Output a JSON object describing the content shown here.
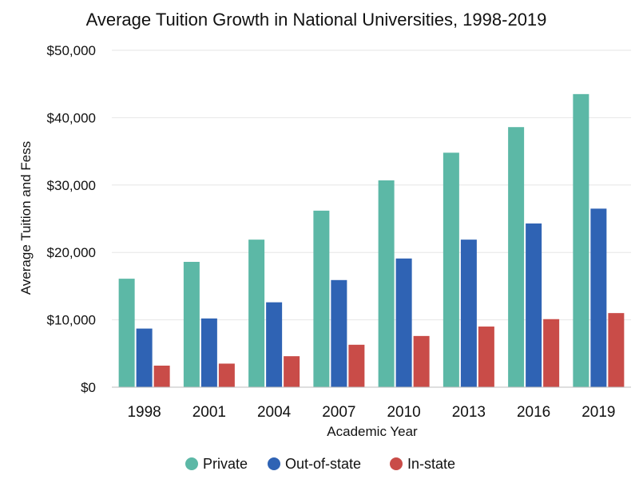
{
  "chart_data": {
    "type": "bar",
    "title": "Average Tuition Growth in National Universities, 1998-2019",
    "xlabel": "Academic Year",
    "ylabel": "Average Tuition and Fess",
    "categories": [
      "1998",
      "2001",
      "2004",
      "2007",
      "2010",
      "2013",
      "2016",
      "2019"
    ],
    "ylim": [
      0,
      50000
    ],
    "yticks": [
      0,
      10000,
      20000,
      30000,
      40000,
      50000
    ],
    "ytick_labels": [
      "$0",
      "$10,000",
      "$20,000",
      "$30,000",
      "$40,000",
      "$50,000"
    ],
    "grid": true,
    "legend_position": "bottom",
    "series": [
      {
        "name": "Private",
        "color": "#5cb8a6",
        "values": [
          16100,
          18600,
          21900,
          26200,
          30700,
          34800,
          38600,
          43500
        ]
      },
      {
        "name": "Out-of-state",
        "color": "#2f63b4",
        "values": [
          8700,
          10200,
          12600,
          15900,
          19100,
          21900,
          24300,
          26500
        ]
      },
      {
        "name": "In-state",
        "color": "#c94c48",
        "values": [
          3200,
          3500,
          4600,
          6300,
          7600,
          9000,
          10100,
          11000
        ]
      }
    ]
  }
}
